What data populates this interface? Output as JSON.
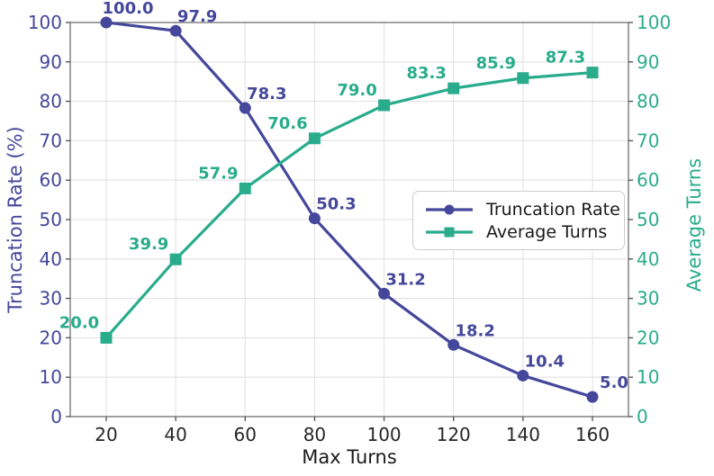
{
  "chart_data": {
    "type": "line",
    "title": "",
    "x": [
      20,
      40,
      60,
      80,
      100,
      120,
      140,
      160
    ],
    "x_axis": {
      "label": "Max Turns",
      "ticks": [
        20,
        40,
        60,
        80,
        100,
        120,
        140,
        160
      ],
      "tick_color": "#262626"
    },
    "left_axis": {
      "label": "Truncation Rate (%)",
      "color": "#45479b",
      "ticks": [
        0,
        10,
        20,
        30,
        40,
        50,
        60,
        70,
        80,
        90,
        100
      ],
      "range": [
        0,
        100
      ]
    },
    "right_axis": {
      "label": "Average Turns",
      "color": "#29ac8c",
      "ticks": [
        0,
        10,
        20,
        30,
        40,
        50,
        60,
        70,
        80,
        90,
        100
      ],
      "range": [
        0,
        100
      ]
    },
    "series": [
      {
        "name": "Truncation Rate",
        "axis": "left",
        "color": "#45479b",
        "marker": "circle",
        "values": [
          100.0,
          97.9,
          78.3,
          50.3,
          31.2,
          18.2,
          10.4,
          5.0
        ],
        "point_labels": [
          "100.0",
          "97.9",
          "78.3",
          "50.3",
          "31.2",
          "18.2",
          "10.4",
          "5.0"
        ]
      },
      {
        "name": "Average Turns",
        "axis": "right",
        "color": "#29ac8c",
        "marker": "square",
        "values": [
          20.0,
          39.9,
          57.9,
          70.6,
          79.0,
          83.3,
          85.9,
          87.3
        ],
        "point_labels": [
          "20.0",
          "39.9",
          "57.9",
          "70.6",
          "79.0",
          "83.3",
          "85.9",
          "87.3"
        ]
      }
    ],
    "legend": {
      "items": [
        "Truncation Rate",
        "Average Turns"
      ],
      "position": "center right"
    },
    "grid": true,
    "grid_color": "#e2e2e2",
    "spine_color": "#6e6e6e",
    "background": "#ffffff"
  }
}
